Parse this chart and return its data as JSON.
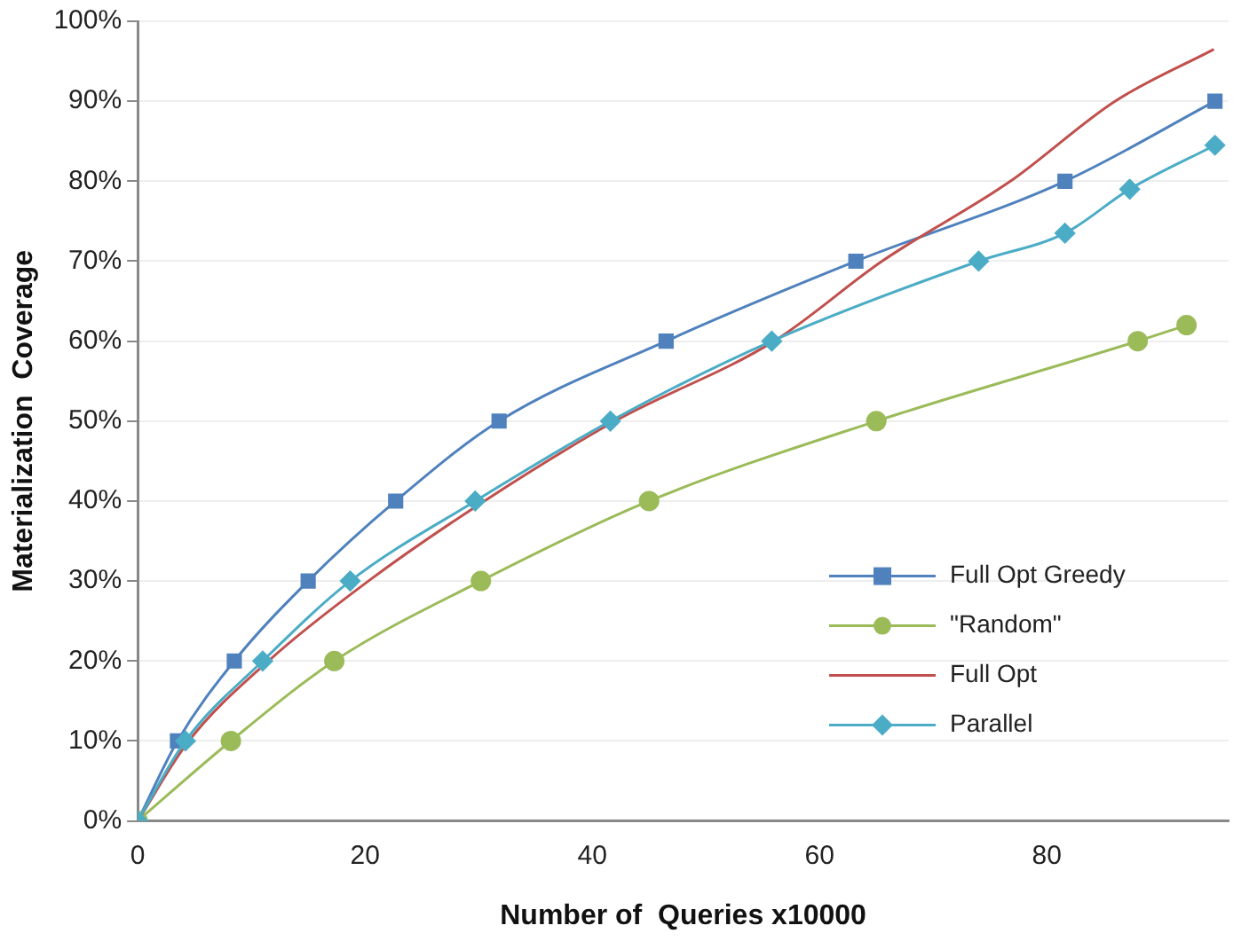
{
  "chart_data": {
    "type": "line",
    "xlabel": "Number of  Queries x10000",
    "ylabel": "Materialization  Coverage",
    "xlim": [
      0,
      96
    ],
    "xticks": [
      0,
      20,
      40,
      60,
      80
    ],
    "ylim": [
      0,
      100
    ],
    "yticks": [
      {
        "value": 0,
        "label": "0%"
      },
      {
        "value": 10,
        "label": "10%"
      },
      {
        "value": 20,
        "label": "20%"
      },
      {
        "value": 30,
        "label": "30%"
      },
      {
        "value": 40,
        "label": "40%"
      },
      {
        "value": 50,
        "label": "50%"
      },
      {
        "value": 60,
        "label": "60%"
      },
      {
        "value": 70,
        "label": "70%"
      },
      {
        "value": 80,
        "label": "80%"
      },
      {
        "value": 90,
        "label": "90%"
      },
      {
        "value": 100,
        "label": "100%"
      }
    ],
    "grid": "y",
    "legend": "bottom right",
    "series": [
      {
        "name": "Full Opt Greedy",
        "color": "#4f81bd",
        "marker": "square",
        "x": [
          0,
          3.5,
          8.5,
          15,
          22.7,
          31.8,
          46.5,
          63.2,
          81.6,
          94.8
        ],
        "values": [
          0,
          10,
          20,
          30,
          40,
          50,
          60,
          70,
          80,
          90
        ]
      },
      {
        "name": "\"Random\"",
        "color": "#9bbb59",
        "marker": "circle",
        "x": [
          0,
          8.2,
          17.3,
          30.2,
          45,
          65,
          88,
          92.3
        ],
        "values": [
          0,
          10,
          20,
          30,
          40,
          50,
          60,
          62
        ]
      },
      {
        "name": "Full Opt",
        "color": "#c0504d",
        "marker": "none",
        "x": [
          0,
          4.5,
          11.5,
          20.3,
          30.5,
          42,
          56,
          65.5,
          76.8,
          86,
          94.7
        ],
        "values": [
          0,
          10,
          20,
          30,
          40,
          50,
          60,
          70,
          80,
          90,
          96.5
        ]
      },
      {
        "name": "Parallel",
        "color": "#4bacc6",
        "marker": "diamond",
        "x": [
          0,
          4.2,
          11,
          18.7,
          29.7,
          41.6,
          55.8,
          74,
          81.6,
          87.3,
          94.8
        ],
        "values": [
          0,
          10,
          20,
          30,
          40,
          50,
          60,
          70,
          73.5,
          79,
          84.5
        ]
      }
    ]
  }
}
